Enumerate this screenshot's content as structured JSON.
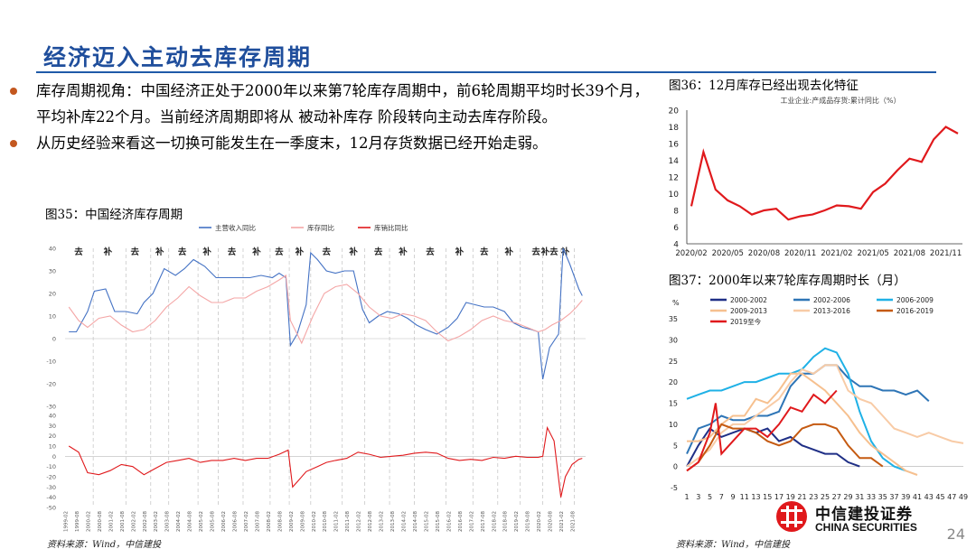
{
  "page": {
    "title": "经济迈入主动去库存周期",
    "bullets": [
      "库存周期视角：中国经济正处于2000年以来第7轮库存周期中，前6轮周期平均时长39个月，平均补库22个月。当前经济周期即将从 被动补库存 阶段转向主动去库存阶段。",
      "从历史经验来看这一切换可能发生在一季度末，12月存货数据已经开始走弱。"
    ],
    "page_number": "24",
    "logo_cn": "中信建投证券",
    "logo_en": "CHINA SECURITIES"
  },
  "colors": {
    "title_blue": "#1f4e9c",
    "bullet": "#c3571f",
    "red": "#e0191c"
  },
  "chart_data": [
    {
      "id": "fig35",
      "type": "line",
      "title": "图35：中国经济库存周期",
      "source": "资料来源：Wind，中信建投",
      "top_panel": {
        "ylim": [
          -30,
          40
        ],
        "yticks": [
          -30,
          -20,
          -10,
          0,
          10,
          20,
          30,
          40
        ],
        "series": [
          {
            "name": "主营收入同比",
            "color": "#4472c4",
            "x": [
              1999.17,
              1999.5,
              2000.0,
              2000.3,
              2000.8,
              2001.2,
              2001.7,
              2002.2,
              2002.5,
              2002.9,
              2003.4,
              2003.9,
              2004.3,
              2004.7,
              2005.2,
              2005.7,
              2006.2,
              2006.7,
              2007.2,
              2007.7,
              2008.2,
              2008.5,
              2008.8,
              2009.0,
              2009.3,
              2009.7,
              2009.9,
              2010.2,
              2010.6,
              2011.0,
              2011.4,
              2011.8,
              2012.2,
              2012.5,
              2012.9,
              2013.3,
              2013.8,
              2014.2,
              2014.6,
              2015.0,
              2015.5,
              2016.0,
              2016.4,
              2016.8,
              2017.2,
              2017.6,
              2018.0,
              2018.5,
              2018.9,
              2019.3,
              2019.7,
              2020.0,
              2020.2,
              2020.5,
              2020.9,
              2021.1,
              2021.4,
              2021.8,
              2021.95
            ],
            "y": [
              3,
              3,
              12,
              21,
              22,
              12,
              12,
              11,
              16,
              20,
              31,
              28,
              31,
              35,
              32,
              27,
              27,
              27,
              27,
              28,
              27,
              29,
              27,
              -3,
              2,
              15,
              38,
              35,
              30,
              29,
              30,
              30,
              13,
              7,
              10,
              12,
              11,
              9,
              6,
              4,
              2,
              5,
              9,
              16,
              15,
              14,
              14,
              12,
              7,
              5,
              4,
              3,
              -18,
              -4,
              2,
              40,
              33,
              22,
              19
            ]
          },
          {
            "name": "库存同比",
            "color": "#f4a6a6",
            "x": [
              1999.17,
              1999.6,
              2000.0,
              2000.5,
              2001.0,
              2001.5,
              2002.0,
              2002.5,
              2003.0,
              2003.5,
              2004.0,
              2004.5,
              2005.0,
              2005.5,
              2006.0,
              2006.5,
              2007.0,
              2007.5,
              2008.0,
              2008.5,
              2008.8,
              2009.0,
              2009.5,
              2010.0,
              2010.5,
              2011.0,
              2011.5,
              2012.0,
              2012.5,
              2013.0,
              2013.5,
              2014.0,
              2014.5,
              2015.0,
              2015.5,
              2016.0,
              2016.5,
              2017.0,
              2017.5,
              2018.0,
              2018.5,
              2019.0,
              2019.5,
              2020.0,
              2020.3,
              2020.6,
              2021.0,
              2021.4,
              2021.7,
              2021.95
            ],
            "y": [
              14,
              8,
              5,
              9,
              10,
              6,
              3,
              4,
              8,
              14,
              18,
              23,
              19,
              16,
              16,
              18,
              18,
              21,
              23,
              26,
              28,
              8,
              -2,
              10,
              20,
              23,
              24,
              20,
              14,
              10,
              9,
              11,
              10,
              8,
              3,
              -1,
              1,
              4,
              8,
              10,
              8,
              7,
              5,
              3,
              4,
              6,
              8,
              11,
              14,
              17
            ]
          },
          {
            "name": "库销比同比",
            "color": "#e0191c",
            "x": [],
            "y": []
          }
        ]
      },
      "bottom_panel": {
        "ylim": [
          -50,
          40
        ],
        "yticks": [
          -50,
          -40,
          -30,
          -20,
          -10,
          0,
          10,
          20,
          30,
          40
        ],
        "series": [
          {
            "name": "库销比同比",
            "color": "#e0191c",
            "x": [
              1999.17,
              1999.6,
              2000.0,
              2000.5,
              2001.0,
              2001.5,
              2002.0,
              2002.5,
              2003.0,
              2003.5,
              2004.0,
              2004.5,
              2005.0,
              2005.5,
              2006.0,
              2006.5,
              2007.0,
              2007.5,
              2008.0,
              2008.5,
              2008.9,
              2009.1,
              2009.3,
              2009.7,
              2010.2,
              2010.6,
              2011.0,
              2011.5,
              2012.0,
              2012.5,
              2013.0,
              2013.5,
              2014.0,
              2014.5,
              2015.0,
              2015.5,
              2016.0,
              2016.5,
              2017.0,
              2017.5,
              2018.0,
              2018.5,
              2019.0,
              2019.5,
              2020.0,
              2020.2,
              2020.4,
              2020.7,
              2021.0,
              2021.2,
              2021.5,
              2021.8,
              2021.95
            ],
            "y": [
              10,
              4,
              -16,
              -18,
              -14,
              -8,
              -10,
              -18,
              -12,
              -6,
              -4,
              -2,
              -6,
              -4,
              -4,
              -2,
              -4,
              -2,
              -2,
              2,
              6,
              -30,
              -25,
              -15,
              -10,
              -6,
              -4,
              -2,
              4,
              2,
              -1,
              0,
              1,
              3,
              4,
              3,
              -2,
              -4,
              -3,
              -4,
              -1,
              -2,
              0,
              -1,
              -1,
              0,
              28,
              15,
              -40,
              -20,
              -8,
              -3,
              -2
            ]
          }
        ]
      },
      "phase_labels": [
        "去",
        "补",
        "去",
        "补",
        "去",
        "补",
        "去",
        "补",
        "去",
        "补",
        "去",
        "补",
        "去",
        "补",
        "去",
        "补",
        "去",
        "补去",
        "补"
      ]
    },
    {
      "id": "fig36",
      "type": "line",
      "title": "图36：12月库存已经出现去化特征",
      "subtitle": "工业企业:产成品存货:累计同比（%）",
      "ylim": [
        4,
        20
      ],
      "yticks": [
        4,
        6,
        8,
        10,
        12,
        14,
        16,
        18,
        20
      ],
      "xtick_labels": [
        "2020/02",
        "2020/05",
        "2020/08",
        "2020/11",
        "2021/02",
        "2021/05",
        "2021/08",
        "2021/11"
      ],
      "series": [
        {
          "name": "产成品存货累计同比",
          "color": "#e0191c",
          "x": [
            0,
            1,
            2,
            3,
            4,
            5,
            6,
            7,
            8,
            9,
            10,
            11,
            12,
            13,
            14,
            15,
            16,
            17,
            18,
            19,
            20,
            21,
            22
          ],
          "y": [
            8.5,
            15,
            10.5,
            9.2,
            8.5,
            7.5,
            8,
            8.2,
            6.9,
            7.3,
            7.5,
            8,
            8.6,
            8.5,
            8.2,
            10.2,
            11.2,
            12.8,
            14.2,
            13.8,
            16.5,
            18,
            17.2
          ]
        }
      ]
    },
    {
      "id": "fig37",
      "type": "line",
      "title": "图37：2000年以来7轮库存周期时长（月）",
      "ylabel": "%",
      "ylim": [
        -5,
        35
      ],
      "yticks": [
        -5,
        0,
        5,
        10,
        15,
        20,
        25,
        30,
        35
      ],
      "xtick_labels": [
        "1",
        "3",
        "5",
        "7",
        "9",
        "11",
        "13",
        "15",
        "17",
        "19",
        "21",
        "23",
        "25",
        "27",
        "29",
        "31",
        "33",
        "35",
        "37",
        "39",
        "41",
        "43",
        "45",
        "47",
        "49"
      ],
      "series": [
        {
          "name": "2000-2002",
          "color": "#1f2f86",
          "x": [
            1,
            3,
            5,
            7,
            9,
            11,
            13,
            15,
            17,
            19,
            21,
            23,
            25,
            27,
            29,
            31
          ],
          "y": [
            0,
            5,
            9,
            7,
            8,
            9,
            8,
            9,
            6,
            7,
            5,
            4,
            3,
            3,
            1,
            0
          ]
        },
        {
          "name": "2002-2006",
          "color": "#2e75b6",
          "x": [
            1,
            3,
            5,
            7,
            9,
            11,
            13,
            15,
            17,
            19,
            21,
            23,
            25,
            27,
            29,
            31,
            33,
            35,
            37,
            39,
            41,
            43
          ],
          "y": [
            3,
            9,
            10,
            12,
            11,
            11,
            12,
            12,
            13,
            19,
            22,
            22,
            24,
            24,
            21,
            19,
            19,
            18,
            18,
            17,
            18,
            15.5
          ]
        },
        {
          "name": "2006-2009",
          "color": "#1fb1e6",
          "x": [
            1,
            3,
            5,
            7,
            9,
            11,
            13,
            15,
            17,
            19,
            21,
            23,
            25,
            27,
            29,
            31,
            33,
            35,
            37,
            39
          ],
          "y": [
            16,
            17,
            18,
            18,
            19,
            20,
            20,
            21,
            22,
            22,
            23,
            26,
            28,
            27,
            22,
            13,
            6,
            2,
            0,
            -1
          ]
        },
        {
          "name": "2009-2013",
          "color": "#f6c08f",
          "x": [
            1,
            3,
            5,
            7,
            9,
            11,
            13,
            15,
            17,
            19,
            21,
            23,
            25,
            27,
            29,
            31,
            33,
            35,
            37,
            39,
            41
          ],
          "y": [
            6,
            6,
            7,
            10,
            12,
            12,
            16,
            15,
            18,
            22,
            22,
            20,
            18,
            15,
            12,
            8,
            5,
            3,
            1,
            -1,
            -2
          ]
        },
        {
          "name": "2013-2016",
          "color": "#f8cba6",
          "x": [
            1,
            3,
            5,
            7,
            9,
            11,
            13,
            15,
            17,
            19,
            21,
            23,
            25,
            27,
            29,
            31,
            33,
            35,
            37,
            39,
            41,
            43,
            45,
            47,
            49
          ],
          "y": [
            0,
            2,
            4,
            8,
            10,
            10,
            12,
            14,
            16,
            20,
            23,
            22,
            24,
            24,
            18,
            16,
            15,
            12,
            9,
            8,
            7,
            8,
            7,
            6,
            5.5
          ]
        },
        {
          "name": "2016-2019",
          "color": "#c55a11",
          "x": [
            1,
            3,
            5,
            7,
            9,
            11,
            13,
            15,
            17,
            19,
            21,
            23,
            25,
            27,
            29,
            31,
            33,
            35
          ],
          "y": [
            -1,
            1,
            5,
            10,
            9,
            9,
            8,
            6,
            5,
            6,
            9,
            10,
            10,
            9,
            5,
            2,
            2,
            0
          ]
        },
        {
          "name": "2019至今",
          "color": "#e0191c",
          "x": [
            1,
            3,
            5,
            6,
            7,
            9,
            11,
            13,
            15,
            17,
            19,
            21,
            23,
            25,
            27
          ],
          "y": [
            -1,
            1,
            8,
            15,
            3,
            6,
            9,
            9,
            7,
            10,
            14,
            13,
            17,
            15,
            18
          ]
        }
      ]
    }
  ]
}
